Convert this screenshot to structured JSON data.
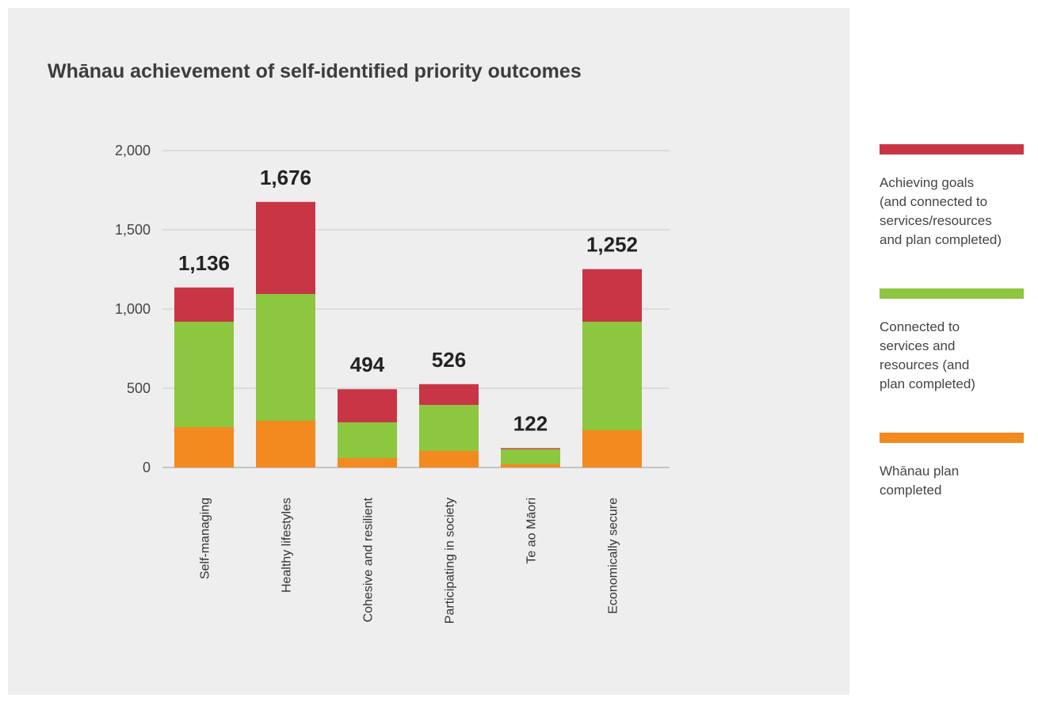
{
  "chart_data": {
    "type": "bar",
    "stacked": true,
    "title": "Whānau achievement of self-identified priority outcomes",
    "xlabel": "",
    "ylabel": "",
    "ylim": [
      0,
      2000
    ],
    "yticks": [
      0,
      500,
      1000,
      1500,
      2000
    ],
    "ytick_labels": [
      "0",
      "500",
      "1,000",
      "1,500",
      "2,000"
    ],
    "grid": true,
    "legend_position": "right",
    "categories": [
      "Self-managing",
      "Healthy lifestyles",
      "Cohesive and resilient",
      "Participating in society",
      "Te ao Māori",
      "Economically secure"
    ],
    "totals": [
      1136,
      1676,
      494,
      526,
      122,
      1252
    ],
    "total_labels": [
      "1,136",
      "1,676",
      "494",
      "526",
      "122",
      "1,252"
    ],
    "series": [
      {
        "name": "Whānau plan completed",
        "color": "#f28a20",
        "values": [
          255,
          295,
          60,
          105,
          20,
          235
        ]
      },
      {
        "name": "Connected to services and resources (and plan completed)",
        "color": "#8dc63f",
        "values": [
          665,
          800,
          225,
          290,
          95,
          685
        ]
      },
      {
        "name": "Achieving goals (and connected to services/resources and plan completed)",
        "color": "#c83645",
        "values": [
          216,
          581,
          209,
          131,
          7,
          332
        ]
      }
    ]
  },
  "legend": [
    {
      "label": "Achieving goals\n(and connected to\nservices/resources\nand plan completed)",
      "color": "#c83645"
    },
    {
      "label": "Connected to\nservices and\nresources (and\nplan completed)",
      "color": "#8dc63f"
    },
    {
      "label": "Whānau plan\ncompleted",
      "color": "#f28a20"
    }
  ]
}
